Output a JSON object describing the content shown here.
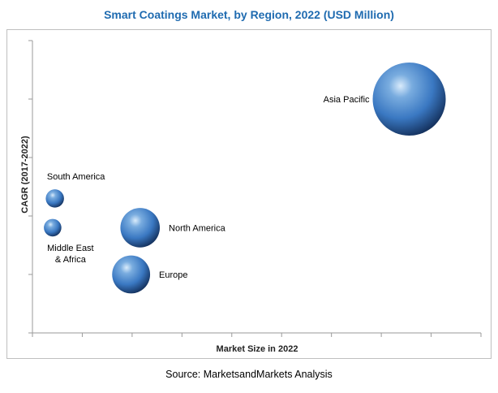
{
  "chart_data": {
    "type": "bubble",
    "title": "Smart Coatings Market, by Region, 2022 (USD Million)",
    "xlabel": "Market Size in 2022",
    "ylabel": "CAGR (2017-2022)",
    "source": "Source: MarketsandMarkets Analysis",
    "grid": false,
    "colors": {
      "bubble": "#3a78c2",
      "title": "#1f6bb0"
    },
    "points": [
      {
        "label": [
          "Asia Pacific"
        ],
        "x": 0.84,
        "y": 0.8,
        "size": 1.0,
        "label_pos": "left"
      },
      {
        "label": [
          "South America"
        ],
        "x": 0.05,
        "y": 0.46,
        "size": 0.25,
        "label_pos": "above"
      },
      {
        "label": [
          "Middle East",
          "& Africa"
        ],
        "x": 0.045,
        "y": 0.36,
        "size": 0.24,
        "label_pos": "below"
      },
      {
        "label": [
          "North America"
        ],
        "x": 0.24,
        "y": 0.36,
        "size": 0.54,
        "label_pos": "right"
      },
      {
        "label": [
          "Europe"
        ],
        "x": 0.22,
        "y": 0.2,
        "size": 0.52,
        "label_pos": "right"
      }
    ]
  }
}
